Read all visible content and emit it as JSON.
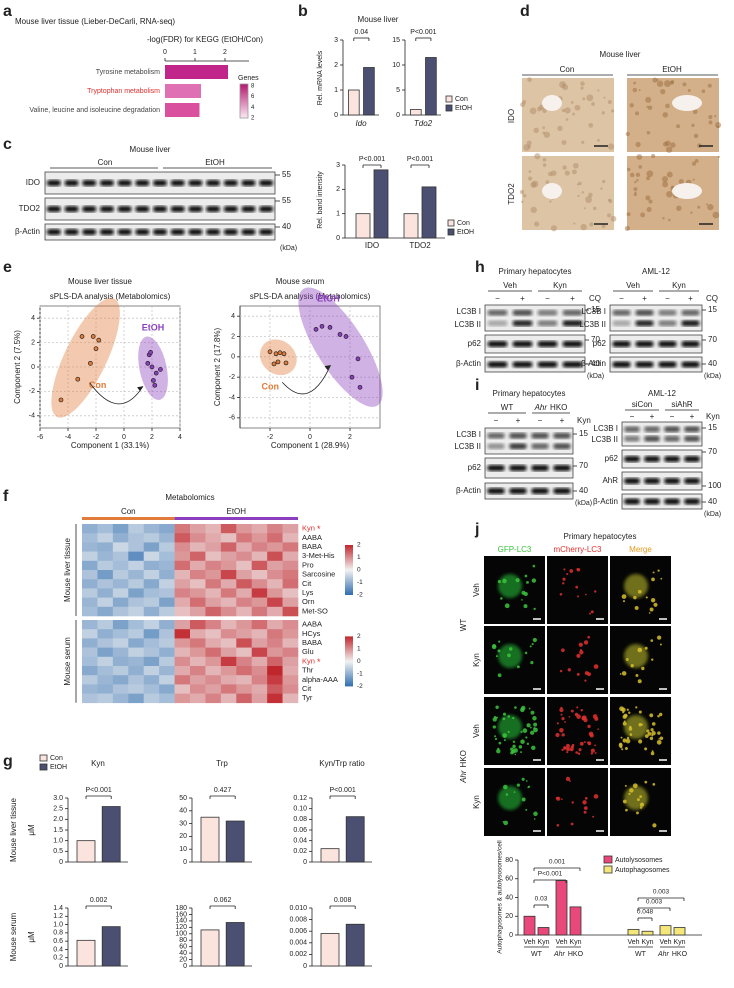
{
  "a": {
    "letter": "a",
    "title": "Mouse liver tissue (Lieber-DeCarli, RNA-seq)",
    "axis_label": "-log(FDR) for KEGG (EtOH/Con)",
    "xlim": [
      0,
      2.8
    ],
    "xticks": [
      0,
      1,
      2
    ],
    "categories": [
      "Tyrosine metabolism",
      "Tryptophan metabolism",
      "Valine, leucine and isoleucine degradation"
    ],
    "values": [
      2.1,
      1.2,
      1.15
    ],
    "colors": [
      "#c2258a",
      "#e070b4",
      "#d9509f"
    ],
    "label_colors": [
      "#444444",
      "#e0302f",
      "#444444"
    ],
    "legend_title": "Genes",
    "legend_ticks": [
      8,
      6,
      4,
      2
    ]
  },
  "b": {
    "letter": "b",
    "title": "Mouse liver",
    "ylabel": "Rel. mRNA levels",
    "legend": [
      "Con",
      "EtOH"
    ],
    "colors": [
      "#fbe3de",
      "#4b4f72"
    ],
    "charts": [
      {
        "gene": "Ido",
        "ylim": [
          0,
          3
        ],
        "yticks": [
          0,
          1,
          2,
          3
        ],
        "values": [
          1.0,
          1.9
        ],
        "p": "0.04"
      },
      {
        "gene": "Tdo2",
        "ylim": [
          0,
          15
        ],
        "yticks": [
          0,
          5,
          10,
          15
        ],
        "values": [
          1.1,
          11.5
        ],
        "p": "P<0.001"
      }
    ]
  },
  "c": {
    "letter": "c",
    "title": "Mouse liver",
    "groups": [
      "Con",
      "EtOH"
    ],
    "rows": [
      "IDO",
      "TDO2",
      "β-Actin"
    ],
    "markers": [
      55,
      55,
      40
    ],
    "unit": "(kDa)",
    "chart": {
      "ylabel": "Rel. band intensity",
      "ylim": [
        0,
        3
      ],
      "yticks": [
        0,
        1,
        2,
        3
      ],
      "categories": [
        "IDO",
        "TDO2"
      ],
      "series": [
        {
          "name": "Con",
          "color": "#fbe3de",
          "values": [
            1.0,
            1.0
          ]
        },
        {
          "name": "EtOH",
          "color": "#4b4f72",
          "values": [
            2.8,
            2.1
          ]
        }
      ],
      "p": [
        "P<0.001",
        "P<0.001"
      ]
    }
  },
  "d": {
    "letter": "d",
    "title": "Mouse liver",
    "columns": [
      "Con",
      "EtOH"
    ],
    "rows": [
      "IDO",
      "TDO2"
    ]
  },
  "e": {
    "letter": "e",
    "plots": [
      {
        "title": "Mouse liver tissue",
        "subtitle": "sPLS-DA analysis (Metabolomics)",
        "xlabel": "Component 1 (33.1%)",
        "ylabel": "Component 2 (7.5%)",
        "xlim": [
          -6,
          4
        ],
        "xticks": [
          -6,
          -4,
          -2,
          0,
          2,
          4
        ],
        "ylim": [
          -5,
          5
        ],
        "yticks": [
          -4,
          -2,
          0,
          2,
          4
        ],
        "series": [
          {
            "name": "Con",
            "color": "#e07b39",
            "x": [
              -4.5,
              -3.3,
              -2.4,
              -2.0,
              -1.8,
              -2.2,
              -3.0
            ],
            "y": [
              -2.7,
              -1.0,
              0.3,
              1.5,
              2.2,
              2.5,
              2.5
            ]
          },
          {
            "name": "EtOH",
            "color": "#8b3fbf",
            "x": [
              1.8,
              2.0,
              2.3,
              2.1,
              2.2,
              1.7,
              1.9,
              2.6
            ],
            "y": [
              1.0,
              0.0,
              -0.5,
              -1.1,
              -1.5,
              0.3,
              1.2,
              -0.2
            ]
          }
        ]
      },
      {
        "title": "Mouse serum",
        "subtitle": "sPLS-DA analysis (Metabolomics)",
        "xlabel": "Component 1 (28.9%)",
        "ylabel": "Component 2 (17.8%)",
        "xlim": [
          -3.5,
          3.5
        ],
        "xticks": [
          -2,
          0,
          2
        ],
        "ylim": [
          -7,
          5
        ],
        "yticks": [
          -6,
          -4,
          -2,
          0,
          2,
          4
        ],
        "series": [
          {
            "name": "Con",
            "color": "#e07b39",
            "x": [
              -2.0,
              -1.7,
              -1.5,
              -1.3,
              -1.6,
              -1.2,
              -1.8
            ],
            "y": [
              0.5,
              0.3,
              0.4,
              0.3,
              -0.5,
              -0.6,
              -0.7
            ]
          },
          {
            "name": "EtOH",
            "color": "#8b3fbf",
            "x": [
              0.6,
              1.0,
              0.3,
              1.5,
              1.8,
              2.1,
              2.5,
              2.4
            ],
            "y": [
              3.0,
              2.9,
              2.7,
              2.2,
              2.0,
              -2.0,
              -3.0,
              -0.2
            ]
          }
        ]
      }
    ]
  },
  "f": {
    "letter": "f",
    "title": "Metabolomics",
    "groups": [
      "Con",
      "EtOH"
    ],
    "group_colors": [
      "#e07b39",
      "#8b3fbf"
    ],
    "asterisk": "*",
    "highlight_color": "#e0302f",
    "colorbar_ticks": [
      2,
      1,
      0,
      -1,
      -2
    ],
    "blocks": [
      {
        "label": "Mouse liver tissue",
        "highlight_rows": [
          0
        ],
        "rows": [
          "Kyn",
          "AABA",
          "BABA",
          "3-Met-His",
          "Pro",
          "Sarcosine",
          "Cit",
          "Lys",
          "Orn",
          "Met-SO"
        ],
        "values": [
          [
            -1,
            -0.8,
            -1.2,
            -0.6,
            -0.9,
            -1.1,
            1.2,
            0.8,
            0.6,
            1.5,
            0.9,
            0.7,
            1.1,
            0.8
          ],
          [
            -0.8,
            -0.5,
            -1,
            -0.7,
            -0.6,
            -0.9,
            1.5,
            1,
            0.7,
            0.5,
            1.2,
            0.9,
            1.3,
            0.6
          ],
          [
            -0.9,
            -1,
            -0.4,
            -0.7,
            -1.2,
            -0.6,
            1,
            0.6,
            0.8,
            1.4,
            0.7,
            1.1,
            0.9,
            1.2
          ],
          [
            -0.5,
            -0.9,
            -0.7,
            -1.5,
            -0.4,
            -0.8,
            0.9,
            1.4,
            0.5,
            0.8,
            1,
            0.6,
            1.6,
            0.7
          ],
          [
            -1.1,
            -0.6,
            -0.8,
            -0.5,
            -1,
            -0.9,
            1.3,
            0.7,
            1.1,
            0.9,
            0.5,
            1.5,
            0.8,
            1
          ],
          [
            -0.7,
            -1.3,
            -0.6,
            -0.9,
            -0.5,
            -1,
            0.6,
            1.1,
            0.9,
            1.7,
            0.8,
            0.5,
            1,
            1.2
          ],
          [
            -1,
            -0.7,
            -0.9,
            -0.6,
            -1.1,
            -0.5,
            0.8,
            0.5,
            1.2,
            0.7,
            1.5,
            1,
            0.6,
            1.3
          ],
          [
            -0.6,
            -1,
            -0.5,
            -1.2,
            -0.8,
            -0.7,
            1.1,
            0.9,
            0.6,
            1.2,
            0.7,
            1.8,
            0.9,
            0.5
          ],
          [
            -0.9,
            -0.5,
            -1.1,
            -0.7,
            -0.6,
            -1.2,
            0.7,
            1.3,
            0.8,
            0.6,
            1.1,
            0.9,
            1.7,
            0.8
          ],
          [
            -0.8,
            -1.1,
            -0.7,
            -0.5,
            -1,
            -0.6,
            0.5,
            0.8,
            1.4,
            1,
            0.6,
            1.2,
            0.7,
            1.6
          ]
        ]
      },
      {
        "label": "Mouse serum",
        "highlight_rows": [
          4
        ],
        "rows": [
          "AABA",
          "HCys",
          "BABA",
          "Glu",
          "Kyn",
          "Thr",
          "alpha-AAA",
          "Cit",
          "Tyr"
        ],
        "values": [
          [
            -0.9,
            -0.6,
            -1.2,
            -0.8,
            -0.5,
            -1,
            0.8,
            1.5,
            1.1,
            0.6,
            0.9,
            1.3,
            0.7,
            1
          ],
          [
            -0.5,
            -1,
            -0.8,
            -0.6,
            -1.3,
            -0.7,
            1.9,
            0.7,
            0.5,
            1,
            0.8,
            0.6,
            1.2,
            0.9
          ],
          [
            -1,
            -0.7,
            -0.5,
            -1.1,
            -0.8,
            -0.6,
            0.9,
            1.2,
            0.7,
            0.5,
            1.6,
            0.8,
            1.1,
            0.6
          ],
          [
            -0.7,
            -1.2,
            -0.9,
            -0.5,
            -0.7,
            -1,
            0.6,
            0.9,
            1.3,
            0.8,
            0.5,
            1.7,
            0.9,
            1.1
          ],
          [
            -0.8,
            -0.5,
            -1,
            -0.9,
            -1.2,
            -0.6,
            1,
            0.6,
            0.9,
            1.8,
            1.1,
            0.7,
            1.4,
            0.8
          ],
          [
            -1.1,
            -0.8,
            -0.6,
            -1,
            -0.5,
            -0.9,
            0.7,
            1.1,
            0.6,
            0.9,
            1.3,
            1,
            2,
            0.7
          ],
          [
            -0.6,
            -0.9,
            -1.1,
            -0.7,
            -1,
            -0.5,
            1.2,
            0.8,
            1,
            0.7,
            0.6,
            1.1,
            1.8,
            0.9
          ],
          [
            -0.9,
            -1,
            -0.7,
            -0.6,
            -0.8,
            -1.1,
            0.5,
            1,
            0.8,
            1.2,
            0.9,
            0.7,
            1.5,
            1
          ],
          [
            -0.7,
            -0.6,
            -0.9,
            -1.2,
            -0.6,
            -0.8,
            0.9,
            0.7,
            1.1,
            0.6,
            1.4,
            0.8,
            1.9,
            0.6
          ]
        ]
      }
    ]
  },
  "g": {
    "letter": "g",
    "legend": [
      "Con",
      "EtOH"
    ],
    "colors": [
      "#fbe3de",
      "#4b4f72"
    ],
    "columns": [
      "Kyn",
      "Trp",
      "Kyn/Trp ratio"
    ],
    "rows": [
      "Mouse liver tissue",
      "Mouse serum"
    ],
    "ylabel": "μM",
    "charts": [
      [
        {
          "ylim": [
            0,
            3
          ],
          "yticks": [
            0,
            0.5,
            {
              "value": 1,
              "label": "1.0"
            },
            1.5,
            {
              "value": 2,
              "label": "2.0"
            },
            2.5,
            {
              "value": 3,
              "label": "3.0"
            }
          ],
          "values": [
            1.0,
            2.6
          ],
          "p": "P<0.001"
        },
        {
          "ylim": [
            0,
            50
          ],
          "yticks": [
            0,
            10,
            20,
            30,
            40,
            50
          ],
          "values": [
            35,
            32
          ],
          "p": "0.427"
        },
        {
          "ylim": [
            0,
            0.12
          ],
          "yticks": [
            0,
            0.02,
            0.04,
            0.06,
            0.08,
            {
              "value": 0.1,
              "label": "0.10"
            },
            0.12
          ],
          "values": [
            0.025,
            0.085
          ],
          "p": "P<0.001"
        }
      ],
      [
        {
          "ylim": [
            0,
            1.4
          ],
          "yticks": [
            0,
            0.2,
            0.4,
            0.6,
            0.8,
            {
              "value": 1,
              "label": "1.0"
            },
            1.2,
            1.4
          ],
          "values": [
            0.62,
            0.95
          ],
          "p": "0.002"
        },
        {
          "ylim": [
            0,
            180
          ],
          "yticks": [
            0,
            20,
            40,
            60,
            80,
            100,
            120,
            140,
            160,
            180
          ],
          "values": [
            112,
            135
          ],
          "p": "0.062"
        },
        {
          "ylim": [
            0,
            0.01
          ],
          "yticks": [
            0,
            0.002,
            0.004,
            0.006,
            0.008,
            {
              "value": 0.01,
              "label": "0.010"
            }
          ],
          "values": [
            0.0056,
            0.0072
          ],
          "p": "0.008"
        }
      ]
    ]
  },
  "h": {
    "letter": "h",
    "blots": [
      {
        "title": "Primary hepatocytes",
        "treatments": [
          "Veh",
          "Kyn"
        ]
      },
      {
        "title": "AML-12",
        "treatments": [
          "Veh",
          "Kyn"
        ]
      }
    ],
    "minus": "−",
    "plus": "+",
    "cq": "CQ",
    "rows": [
      "LC3B I",
      "LC3B II",
      "p62",
      "β-Actin"
    ],
    "markers": [
      15,
      70,
      40
    ],
    "unit": "(kDa)"
  },
  "i": {
    "letter": "i",
    "kyn": "Kyn",
    "minus": "−",
    "plus": "+",
    "unit": "(kDa)",
    "left": {
      "title": "Primary hepatocytes",
      "genotypes": [
        "WT",
        {
          "gene": "Ahr",
          "suffix": "HKO"
        }
      ],
      "rows": [
        "LC3B I",
        "LC3B II",
        "p62",
        "β-Actin"
      ],
      "markers": [
        15,
        70,
        40
      ]
    },
    "right": {
      "title": "AML-12",
      "genotypes": [
        "siCon",
        "siAhR"
      ],
      "rows": [
        "LC3B I",
        "LC3B II",
        "p62",
        "AhR",
        "β-Actin"
      ],
      "markers": [
        15,
        70,
        100,
        40
      ]
    }
  },
  "j": {
    "letter": "j",
    "title": "Primary hepatocytes",
    "channels": [
      "GFP-LC3",
      "mCherry-LC3",
      "Merge"
    ],
    "channel_colors": [
      "#3cc43c",
      "#e0302f",
      "#e89a1a"
    ],
    "genotypes": [
      "WT",
      {
        "gene": "Ahr",
        "suffix": "HKO"
      }
    ],
    "treatments": [
      "Veh",
      "Kyn"
    ],
    "chart": {
      "ylabel": "Autophagosomes & autolysosomes/cell",
      "ylim": [
        0,
        80
      ],
      "yticks": [
        0,
        20,
        40,
        60,
        80
      ],
      "series": [
        {
          "name": "Autolysosomes",
          "color": "#e8497a",
          "values": [
            20,
            8,
            58,
            30
          ]
        },
        {
          "name": "Autophagosomes",
          "color": "#f4e77a",
          "values": [
            6,
            4,
            10,
            8
          ]
        }
      ],
      "p_values": [
        "P<0.001",
        "0.03",
        "0.001",
        "0.048",
        "0.003",
        "0.003"
      ]
    }
  }
}
